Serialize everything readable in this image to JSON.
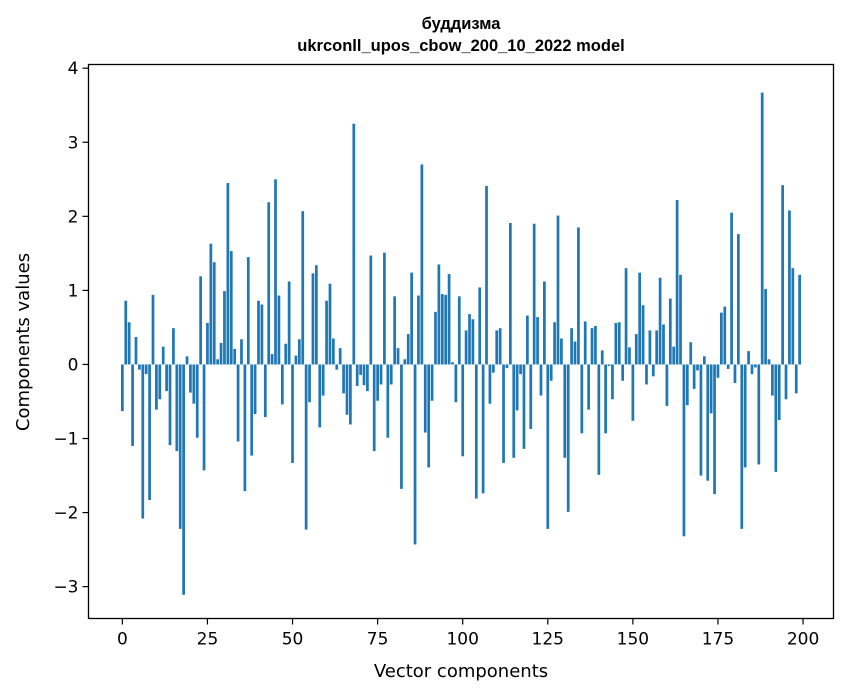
{
  "chart_data": {
    "type": "bar",
    "title": "буддизма",
    "subtitle": "ukrconll_upos_cbow_200_10_2022 model",
    "xlabel": "Vector components",
    "ylabel": "Components values",
    "xlim": [
      -9.95,
      208.95
    ],
    "ylim": [
      -3.43,
      4.05
    ],
    "xticks": [
      0,
      25,
      50,
      75,
      100,
      125,
      150,
      175,
      200
    ],
    "yticks": [
      -3,
      -2,
      -1,
      0,
      1,
      2,
      3,
      4
    ],
    "xtick_labels": [
      "0",
      "25",
      "50",
      "75",
      "100",
      "125",
      "150",
      "175",
      "200"
    ],
    "ytick_labels": [
      "−3",
      "−2",
      "−1",
      "0",
      "1",
      "2",
      "3",
      "4"
    ],
    "grid": false,
    "bar_color": "#1f77b4",
    "x": [
      0,
      1,
      2,
      3,
      4,
      5,
      6,
      7,
      8,
      9,
      10,
      11,
      12,
      13,
      14,
      15,
      16,
      17,
      18,
      19,
      20,
      21,
      22,
      23,
      24,
      25,
      26,
      27,
      28,
      29,
      30,
      31,
      32,
      33,
      34,
      35,
      36,
      37,
      38,
      39,
      40,
      41,
      42,
      43,
      44,
      45,
      46,
      47,
      48,
      49,
      50,
      51,
      52,
      53,
      54,
      55,
      56,
      57,
      58,
      59,
      60,
      61,
      62,
      63,
      64,
      65,
      66,
      67,
      68,
      69,
      70,
      71,
      72,
      73,
      74,
      75,
      76,
      77,
      78,
      79,
      80,
      81,
      82,
      83,
      84,
      85,
      86,
      87,
      88,
      89,
      90,
      91,
      92,
      93,
      94,
      95,
      96,
      97,
      98,
      99,
      100,
      101,
      102,
      103,
      104,
      105,
      106,
      107,
      108,
      109,
      110,
      111,
      112,
      113,
      114,
      115,
      116,
      117,
      118,
      119,
      120,
      121,
      122,
      123,
      124,
      125,
      126,
      127,
      128,
      129,
      130,
      131,
      132,
      133,
      134,
      135,
      136,
      137,
      138,
      139,
      140,
      141,
      142,
      143,
      144,
      145,
      146,
      147,
      148,
      149,
      150,
      151,
      152,
      153,
      154,
      155,
      156,
      157,
      158,
      159,
      160,
      161,
      162,
      163,
      164,
      165,
      166,
      167,
      168,
      169,
      170,
      171,
      172,
      173,
      174,
      175,
      176,
      177,
      178,
      179,
      180,
      181,
      182,
      183,
      184,
      185,
      186,
      187,
      188,
      189,
      190,
      191,
      192,
      193,
      194,
      195,
      196,
      197,
      198,
      199
    ],
    "values": [
      -0.63,
      0.86,
      0.57,
      -1.1,
      0.37,
      -0.07,
      -2.08,
      -0.13,
      -1.83,
      0.94,
      -0.61,
      -0.47,
      0.24,
      -0.36,
      -1.09,
      0.49,
      -1.17,
      -2.22,
      -3.11,
      0.11,
      -0.38,
      -0.53,
      -0.99,
      1.19,
      -1.43,
      0.56,
      1.63,
      1.38,
      0.07,
      0.29,
      0.99,
      2.45,
      1.53,
      0.21,
      -1.04,
      0.34,
      -1.71,
      1.45,
      -1.23,
      -0.67,
      0.86,
      0.81,
      -0.71,
      2.19,
      0.14,
      2.5,
      0.93,
      -0.54,
      0.28,
      1.12,
      -1.33,
      0.12,
      0.34,
      2.07,
      -2.23,
      -0.51,
      1.23,
      1.34,
      -0.85,
      -0.42,
      0.86,
      1.09,
      0.35,
      -0.07,
      0.22,
      -0.39,
      -0.68,
      -0.81,
      3.25,
      -0.29,
      -0.14,
      -0.28,
      -0.36,
      1.47,
      -1.17,
      -0.49,
      -0.27,
      1.51,
      -0.99,
      -0.27,
      0.92,
      0.22,
      -1.68,
      0.07,
      0.41,
      1.24,
      -2.43,
      0.93,
      2.7,
      -0.92,
      -1.39,
      -0.49,
      0.71,
      1.35,
      0.95,
      0.94,
      1.22,
      0.03,
      -0.51,
      0.92,
      -1.24,
      0.46,
      0.68,
      0.61,
      -1.81,
      1.04,
      -1.74,
      2.41,
      -0.53,
      -0.11,
      0.46,
      0.49,
      -1.33,
      -0.05,
      1.91,
      -1.26,
      -0.62,
      -0.13,
      -1.14,
      0.66,
      -0.87,
      1.9,
      0.64,
      -0.42,
      1.12,
      -2.22,
      -0.22,
      0.57,
      2.01,
      0.35,
      -1.26,
      -1.99,
      0.49,
      0.31,
      1.85,
      -0.93,
      0.58,
      -0.61,
      0.49,
      0.52,
      -1.49,
      0.19,
      -0.93,
      -0.02,
      -0.47,
      0.56,
      0.57,
      -0.22,
      1.3,
      0.23,
      -0.76,
      0.41,
      1.24,
      0.8,
      -0.27,
      0.46,
      -0.16,
      0.46,
      1.17,
      0.54,
      -0.56,
      0.89,
      0.24,
      2.22,
      1.21,
      -2.32,
      -0.55,
      0.3,
      -0.33,
      -0.08,
      -1.5,
      0.11,
      -1.57,
      -0.66,
      -1.75,
      -0.18,
      0.7,
      0.78,
      -0.06,
      2.05,
      -0.25,
      1.76,
      -2.22,
      -1.39,
      0.18,
      -0.13,
      -0.04,
      -1.35,
      3.67,
      1.02,
      0.07,
      -0.42,
      -1.45,
      -0.75,
      2.42,
      -0.47,
      2.08,
      1.3,
      -0.39,
      1.21
    ]
  }
}
